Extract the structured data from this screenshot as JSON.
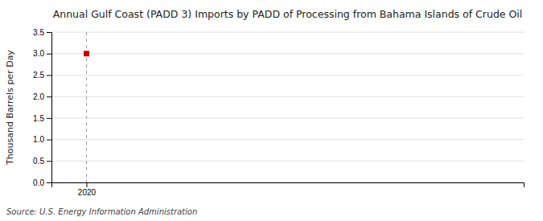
{
  "chart_data": {
    "type": "scatter",
    "title": "Annual Gulf Coast (PADD 3) Imports by PADD of Processing from Bahama Islands of Crude Oil",
    "ylabel": "Thousand Barrels per Day",
    "source": "Source: U.S. Energy Information Administration",
    "x": [
      2020
    ],
    "values": [
      3.0
    ],
    "color": "#cc0000",
    "marker": "square",
    "xlim": [
      2019.6,
      2025.0
    ],
    "xticks": [
      2020
    ],
    "ylim": [
      0.0,
      3.5
    ],
    "yticks": [
      {
        "value": 0.0,
        "label": "0.0"
      },
      0.5,
      {
        "value": 1.0,
        "label": "1.0"
      },
      1.5,
      {
        "value": 2.0,
        "label": "2.0"
      },
      2.5,
      {
        "value": 3.0,
        "label": "3.0"
      },
      3.5
    ],
    "reference_x": 2020,
    "grid": true
  }
}
